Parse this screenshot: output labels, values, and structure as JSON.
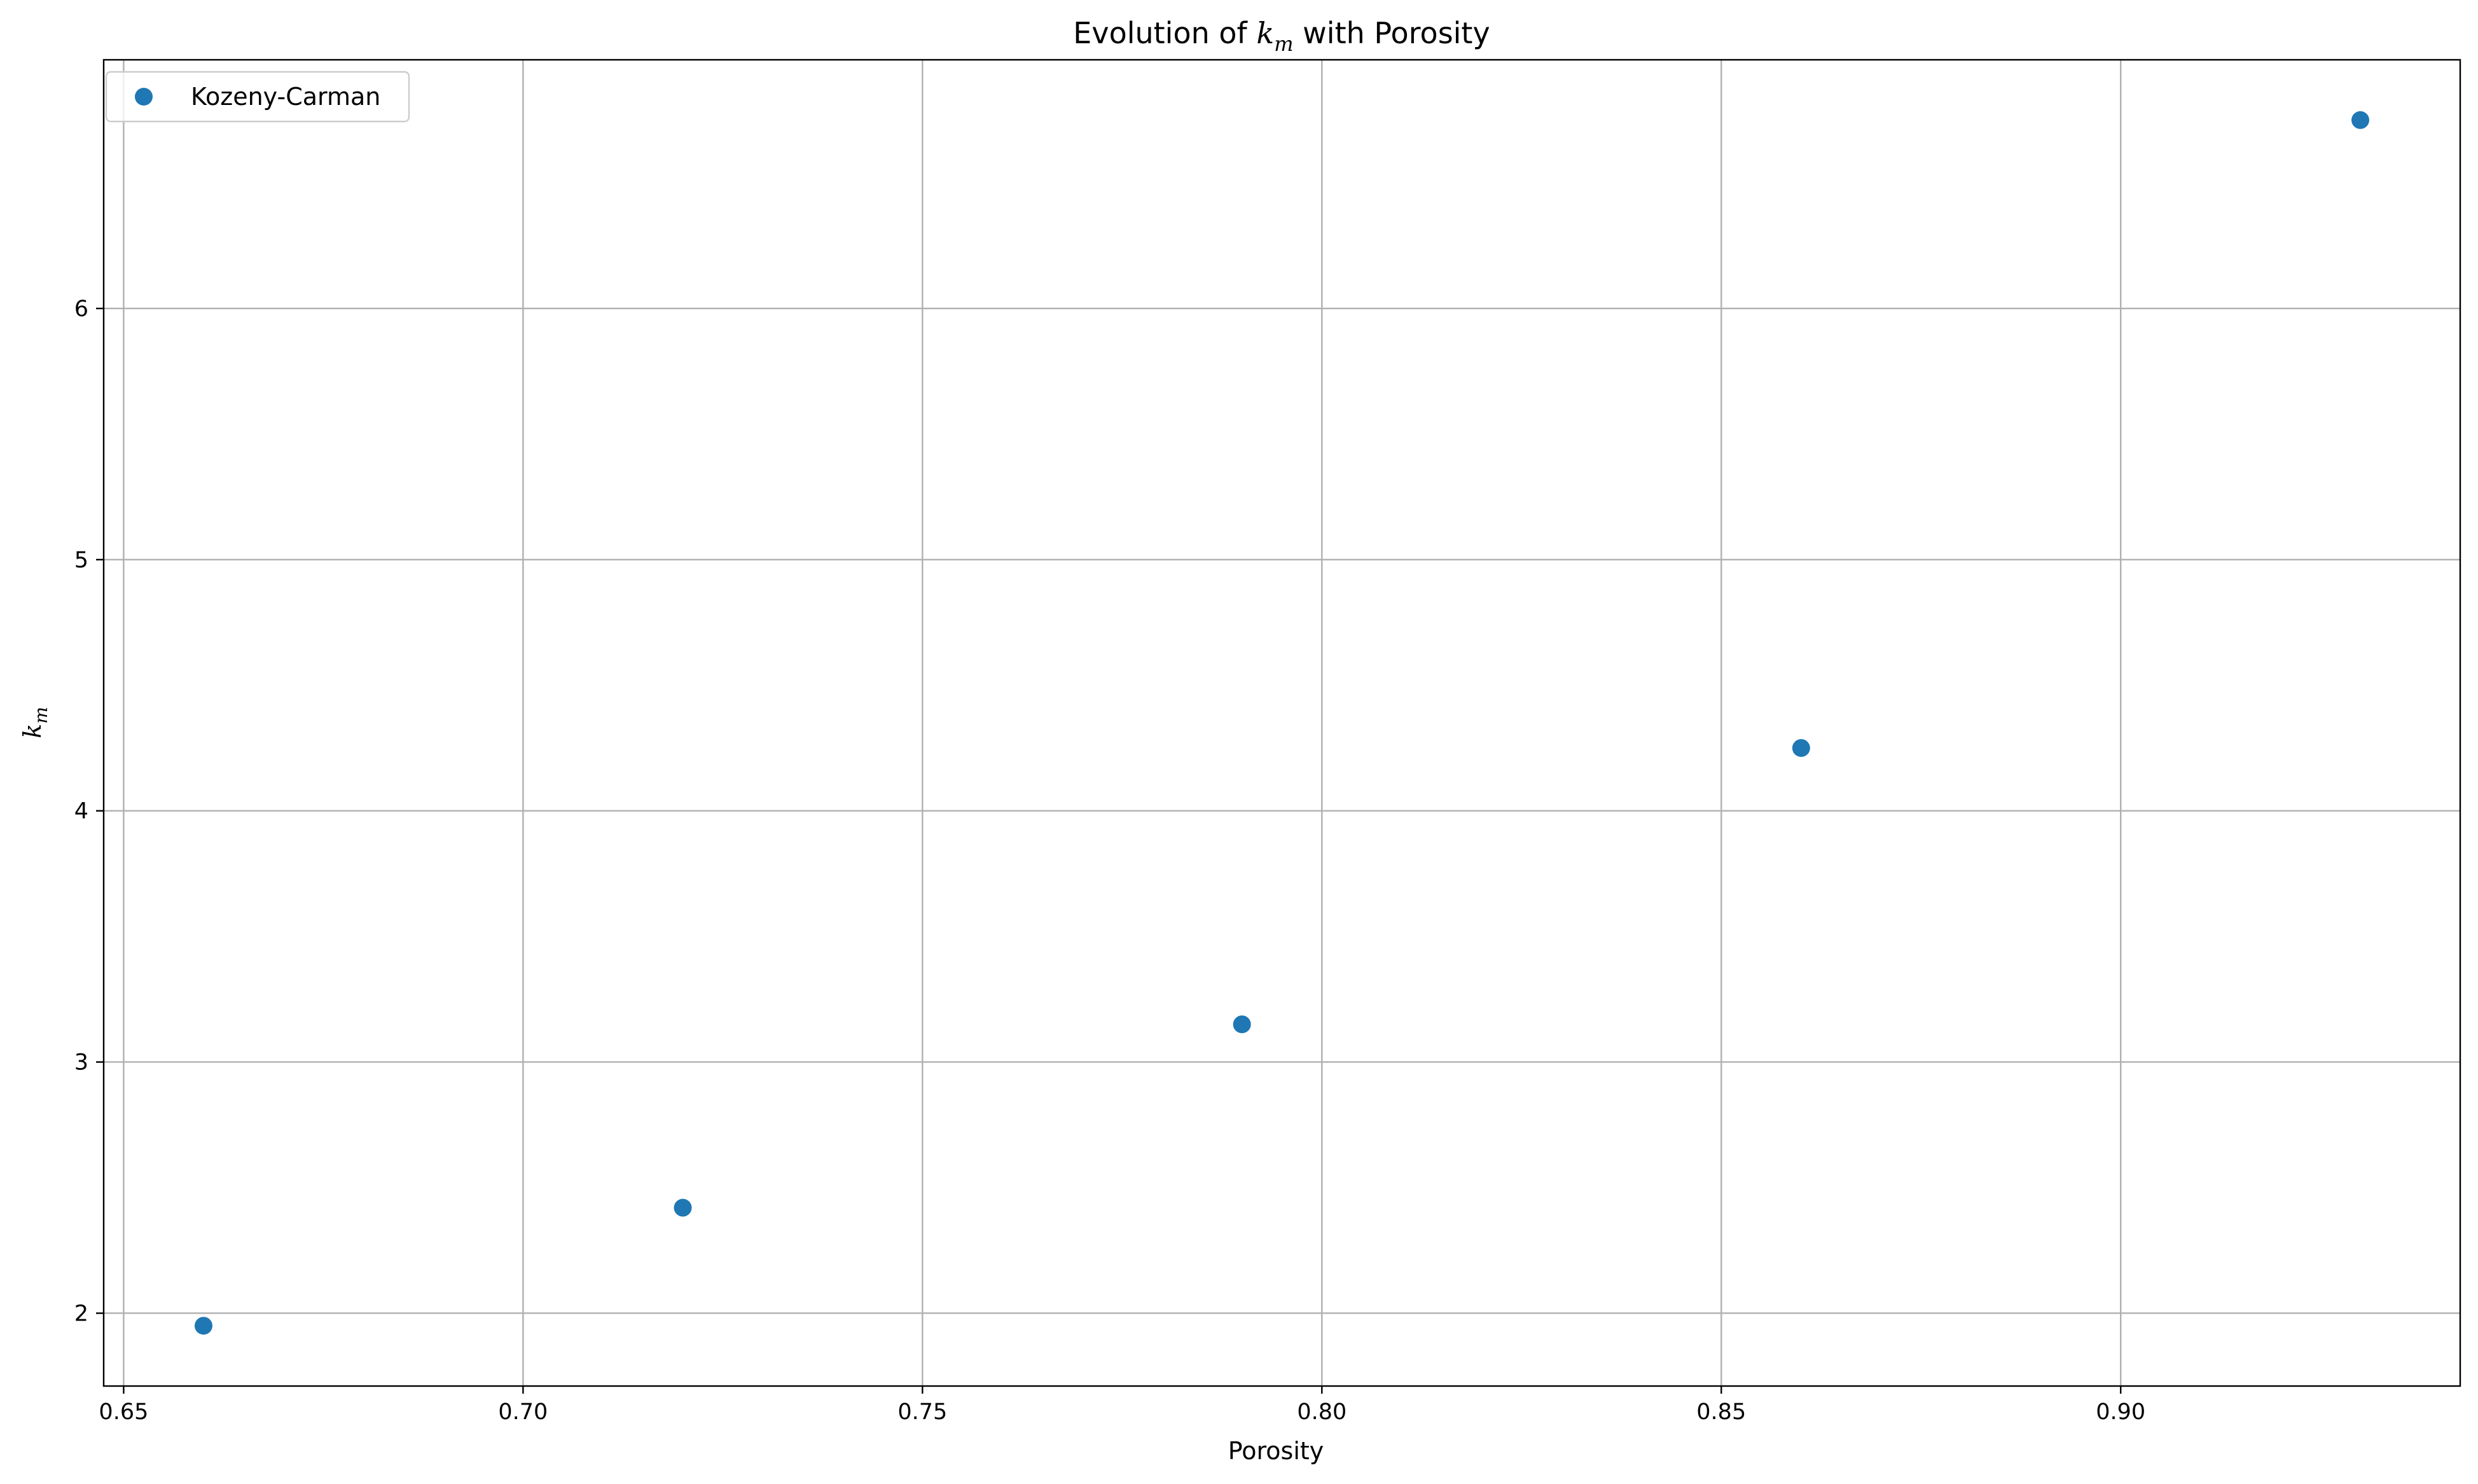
{
  "chart_data": {
    "type": "scatter",
    "title_prefix": "Evolution of ",
    "title_symbol": "k",
    "title_subscript": "m",
    "title_suffix": " with Porosity",
    "xlabel": "Porosity",
    "ylabel_symbol": "k",
    "ylabel_subscript": "m",
    "xlim": [
      0.6475,
      0.9425
    ],
    "ylim": [
      1.71,
      6.99
    ],
    "xticks": [
      0.65,
      0.7,
      0.75,
      0.8,
      0.85,
      0.9
    ],
    "xtick_labels": [
      "0.65",
      "0.70",
      "0.75",
      "0.80",
      "0.85",
      "0.90"
    ],
    "yticks": [
      2,
      3,
      4,
      5,
      6
    ],
    "ytick_labels": [
      "2",
      "3",
      "4",
      "5",
      "6"
    ],
    "grid": true,
    "legend_position": "top-left",
    "series": [
      {
        "name": "Kozeny-Carman",
        "color": "#1f77b4",
        "x": [
          0.66,
          0.72,
          0.79,
          0.86,
          0.93
        ],
        "y": [
          1.95,
          2.42,
          3.15,
          4.25,
          6.75
        ]
      }
    ]
  }
}
